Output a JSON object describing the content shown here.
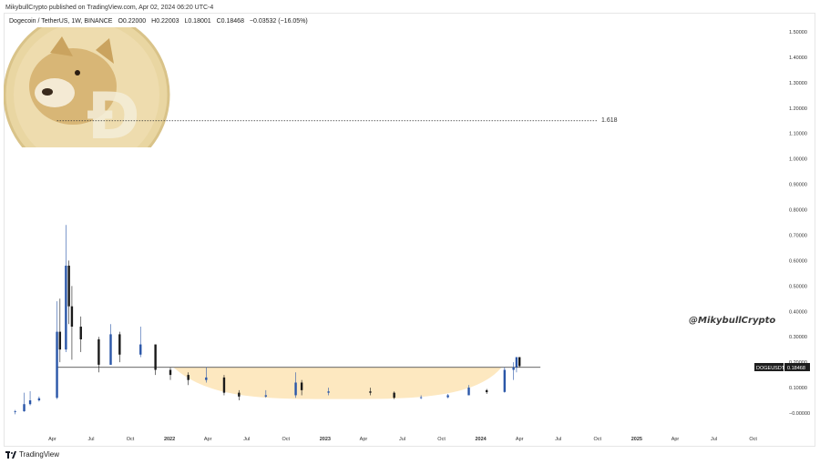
{
  "header": {
    "publisher_line": "MikybullCrypto published on TradingView.com, Apr 02, 2024 06:20 UTC-4",
    "symbol": "Dogecoin / TetherUS, 1W, BINANCE",
    "open": "O0.22000",
    "high": "H0.22003",
    "low": "L0.18001",
    "close": "C0.18468",
    "change": "−0.03532 (−16.05%)"
  },
  "watermark_text": "@MikybullCrypto",
  "fib_label": "1.618",
  "price_tag": {
    "symbol": "DOGEUSDT",
    "value": "0.18468"
  },
  "footer": {
    "brand": "TradingView"
  },
  "colors": {
    "bull": "#2a56a8",
    "bear": "#1a1a1a",
    "cup_fill": "#fde8c0",
    "coin": "#e9d6a2"
  },
  "chart_data": {
    "type": "candlestick",
    "title": "",
    "xlabel": "",
    "ylabel": "",
    "ylim": [
      -0.02,
      1.52
    ],
    "y_ticks": [
      "1.50000",
      "1.40000",
      "1.30000",
      "1.20000",
      "1.10000",
      "1.00000",
      "0.90000",
      "0.80000",
      "0.70000",
      "0.60000",
      "0.50000",
      "0.40000",
      "0.30000",
      "0.20000",
      "0.10000",
      "−0.00000"
    ],
    "y_tick_values": [
      1.5,
      1.4,
      1.3,
      1.2,
      1.1,
      1.0,
      0.9,
      0.8,
      0.7,
      0.6,
      0.5,
      0.4,
      0.3,
      0.2,
      0.1,
      0.0
    ],
    "x_ticks": [
      {
        "label": "Apr",
        "date": "2021-04-01"
      },
      {
        "label": "Jul",
        "date": "2021-07-01"
      },
      {
        "label": "Oct",
        "date": "2021-10-01"
      },
      {
        "label": "2022",
        "date": "2022-01-01"
      },
      {
        "label": "Apr",
        "date": "2022-04-01"
      },
      {
        "label": "Jul",
        "date": "2022-07-01"
      },
      {
        "label": "Oct",
        "date": "2022-10-01"
      },
      {
        "label": "2023",
        "date": "2023-01-01"
      },
      {
        "label": "Apr",
        "date": "2023-04-01"
      },
      {
        "label": "Jul",
        "date": "2023-07-01"
      },
      {
        "label": "Oct",
        "date": "2023-10-01"
      },
      {
        "label": "2024",
        "date": "2024-01-01"
      },
      {
        "label": "Apr",
        "date": "2024-04-01"
      },
      {
        "label": "Jul",
        "date": "2024-07-01"
      },
      {
        "label": "Oct",
        "date": "2024-10-01"
      },
      {
        "label": "2025",
        "date": "2025-01-01"
      },
      {
        "label": "Apr",
        "date": "2025-04-01"
      },
      {
        "label": "Jul",
        "date": "2025-07-01"
      },
      {
        "label": "Oct",
        "date": "2025-10-01"
      }
    ],
    "x_range": [
      "2020-12-10",
      "2025-11-20"
    ],
    "candles": [
      {
        "d": "2021-01-04",
        "o": 0.005,
        "h": 0.012,
        "l": -0.005,
        "c": 0.007
      },
      {
        "d": "2021-01-25",
        "o": 0.007,
        "h": 0.08,
        "l": 0.005,
        "c": 0.035
      },
      {
        "d": "2021-02-08",
        "o": 0.035,
        "h": 0.086,
        "l": 0.03,
        "c": 0.05
      },
      {
        "d": "2021-03-01",
        "o": 0.05,
        "h": 0.065,
        "l": 0.045,
        "c": 0.058
      },
      {
        "d": "2021-04-12",
        "o": 0.06,
        "h": 0.44,
        "l": 0.055,
        "c": 0.32
      },
      {
        "d": "2021-04-19",
        "o": 0.32,
        "h": 0.45,
        "l": 0.2,
        "c": 0.25
      },
      {
        "d": "2021-05-03",
        "o": 0.25,
        "h": 0.74,
        "l": 0.24,
        "c": 0.58
      },
      {
        "d": "2021-05-10",
        "o": 0.58,
        "h": 0.6,
        "l": 0.35,
        "c": 0.42
      },
      {
        "d": "2021-05-17",
        "o": 0.42,
        "h": 0.5,
        "l": 0.21,
        "c": 0.34
      },
      {
        "d": "2021-06-07",
        "o": 0.34,
        "h": 0.38,
        "l": 0.24,
        "c": 0.29
      },
      {
        "d": "2021-07-19",
        "o": 0.29,
        "h": 0.3,
        "l": 0.16,
        "c": 0.19
      },
      {
        "d": "2021-08-16",
        "o": 0.19,
        "h": 0.35,
        "l": 0.19,
        "c": 0.31
      },
      {
        "d": "2021-09-06",
        "o": 0.31,
        "h": 0.32,
        "l": 0.2,
        "c": 0.23
      },
      {
        "d": "2021-10-25",
        "o": 0.23,
        "h": 0.34,
        "l": 0.22,
        "c": 0.27
      },
      {
        "d": "2021-11-29",
        "o": 0.27,
        "h": 0.27,
        "l": 0.15,
        "c": 0.17
      },
      {
        "d": "2022-01-03",
        "o": 0.17,
        "h": 0.18,
        "l": 0.13,
        "c": 0.15
      },
      {
        "d": "2022-02-14",
        "o": 0.15,
        "h": 0.16,
        "l": 0.11,
        "c": 0.13
      },
      {
        "d": "2022-03-28",
        "o": 0.13,
        "h": 0.18,
        "l": 0.12,
        "c": 0.14
      },
      {
        "d": "2022-05-09",
        "o": 0.14,
        "h": 0.15,
        "l": 0.07,
        "c": 0.08
      },
      {
        "d": "2022-06-13",
        "o": 0.08,
        "h": 0.09,
        "l": 0.05,
        "c": 0.065
      },
      {
        "d": "2022-08-15",
        "o": 0.065,
        "h": 0.09,
        "l": 0.06,
        "c": 0.07
      },
      {
        "d": "2022-10-24",
        "o": 0.07,
        "h": 0.16,
        "l": 0.06,
        "c": 0.12
      },
      {
        "d": "2022-11-07",
        "o": 0.12,
        "h": 0.13,
        "l": 0.07,
        "c": 0.09
      },
      {
        "d": "2023-01-09",
        "o": 0.08,
        "h": 0.1,
        "l": 0.07,
        "c": 0.085
      },
      {
        "d": "2023-04-17",
        "o": 0.085,
        "h": 0.1,
        "l": 0.07,
        "c": 0.08
      },
      {
        "d": "2023-06-12",
        "o": 0.08,
        "h": 0.085,
        "l": 0.055,
        "c": 0.06
      },
      {
        "d": "2023-08-14",
        "o": 0.06,
        "h": 0.07,
        "l": 0.055,
        "c": 0.062
      },
      {
        "d": "2023-10-16",
        "o": 0.062,
        "h": 0.075,
        "l": 0.058,
        "c": 0.07
      },
      {
        "d": "2023-12-04",
        "o": 0.07,
        "h": 0.11,
        "l": 0.07,
        "c": 0.1
      },
      {
        "d": "2024-01-15",
        "o": 0.09,
        "h": 0.095,
        "l": 0.075,
        "c": 0.082
      },
      {
        "d": "2024-02-26",
        "o": 0.083,
        "h": 0.18,
        "l": 0.08,
        "c": 0.17
      },
      {
        "d": "2024-03-18",
        "o": 0.17,
        "h": 0.2,
        "l": 0.13,
        "c": 0.18
      },
      {
        "d": "2024-03-25",
        "o": 0.18,
        "h": 0.22,
        "l": 0.16,
        "c": 0.22
      },
      {
        "d": "2024-04-01",
        "o": 0.22,
        "h": 0.22003,
        "l": 0.18001,
        "c": 0.18468
      }
    ],
    "lines": [
      {
        "name": "neckline",
        "y": 0.18,
        "from": "2021-04-12",
        "to": "2024-05-20"
      },
      {
        "name": "fib-extension",
        "y": 1.15,
        "from": "2021-04-12",
        "to": "2024-10-01",
        "label": "1.618"
      }
    ],
    "cup_region": {
      "from": "2022-01-10",
      "to": "2024-02-19",
      "top": 0.18
    },
    "grid": false,
    "legend": "none"
  }
}
